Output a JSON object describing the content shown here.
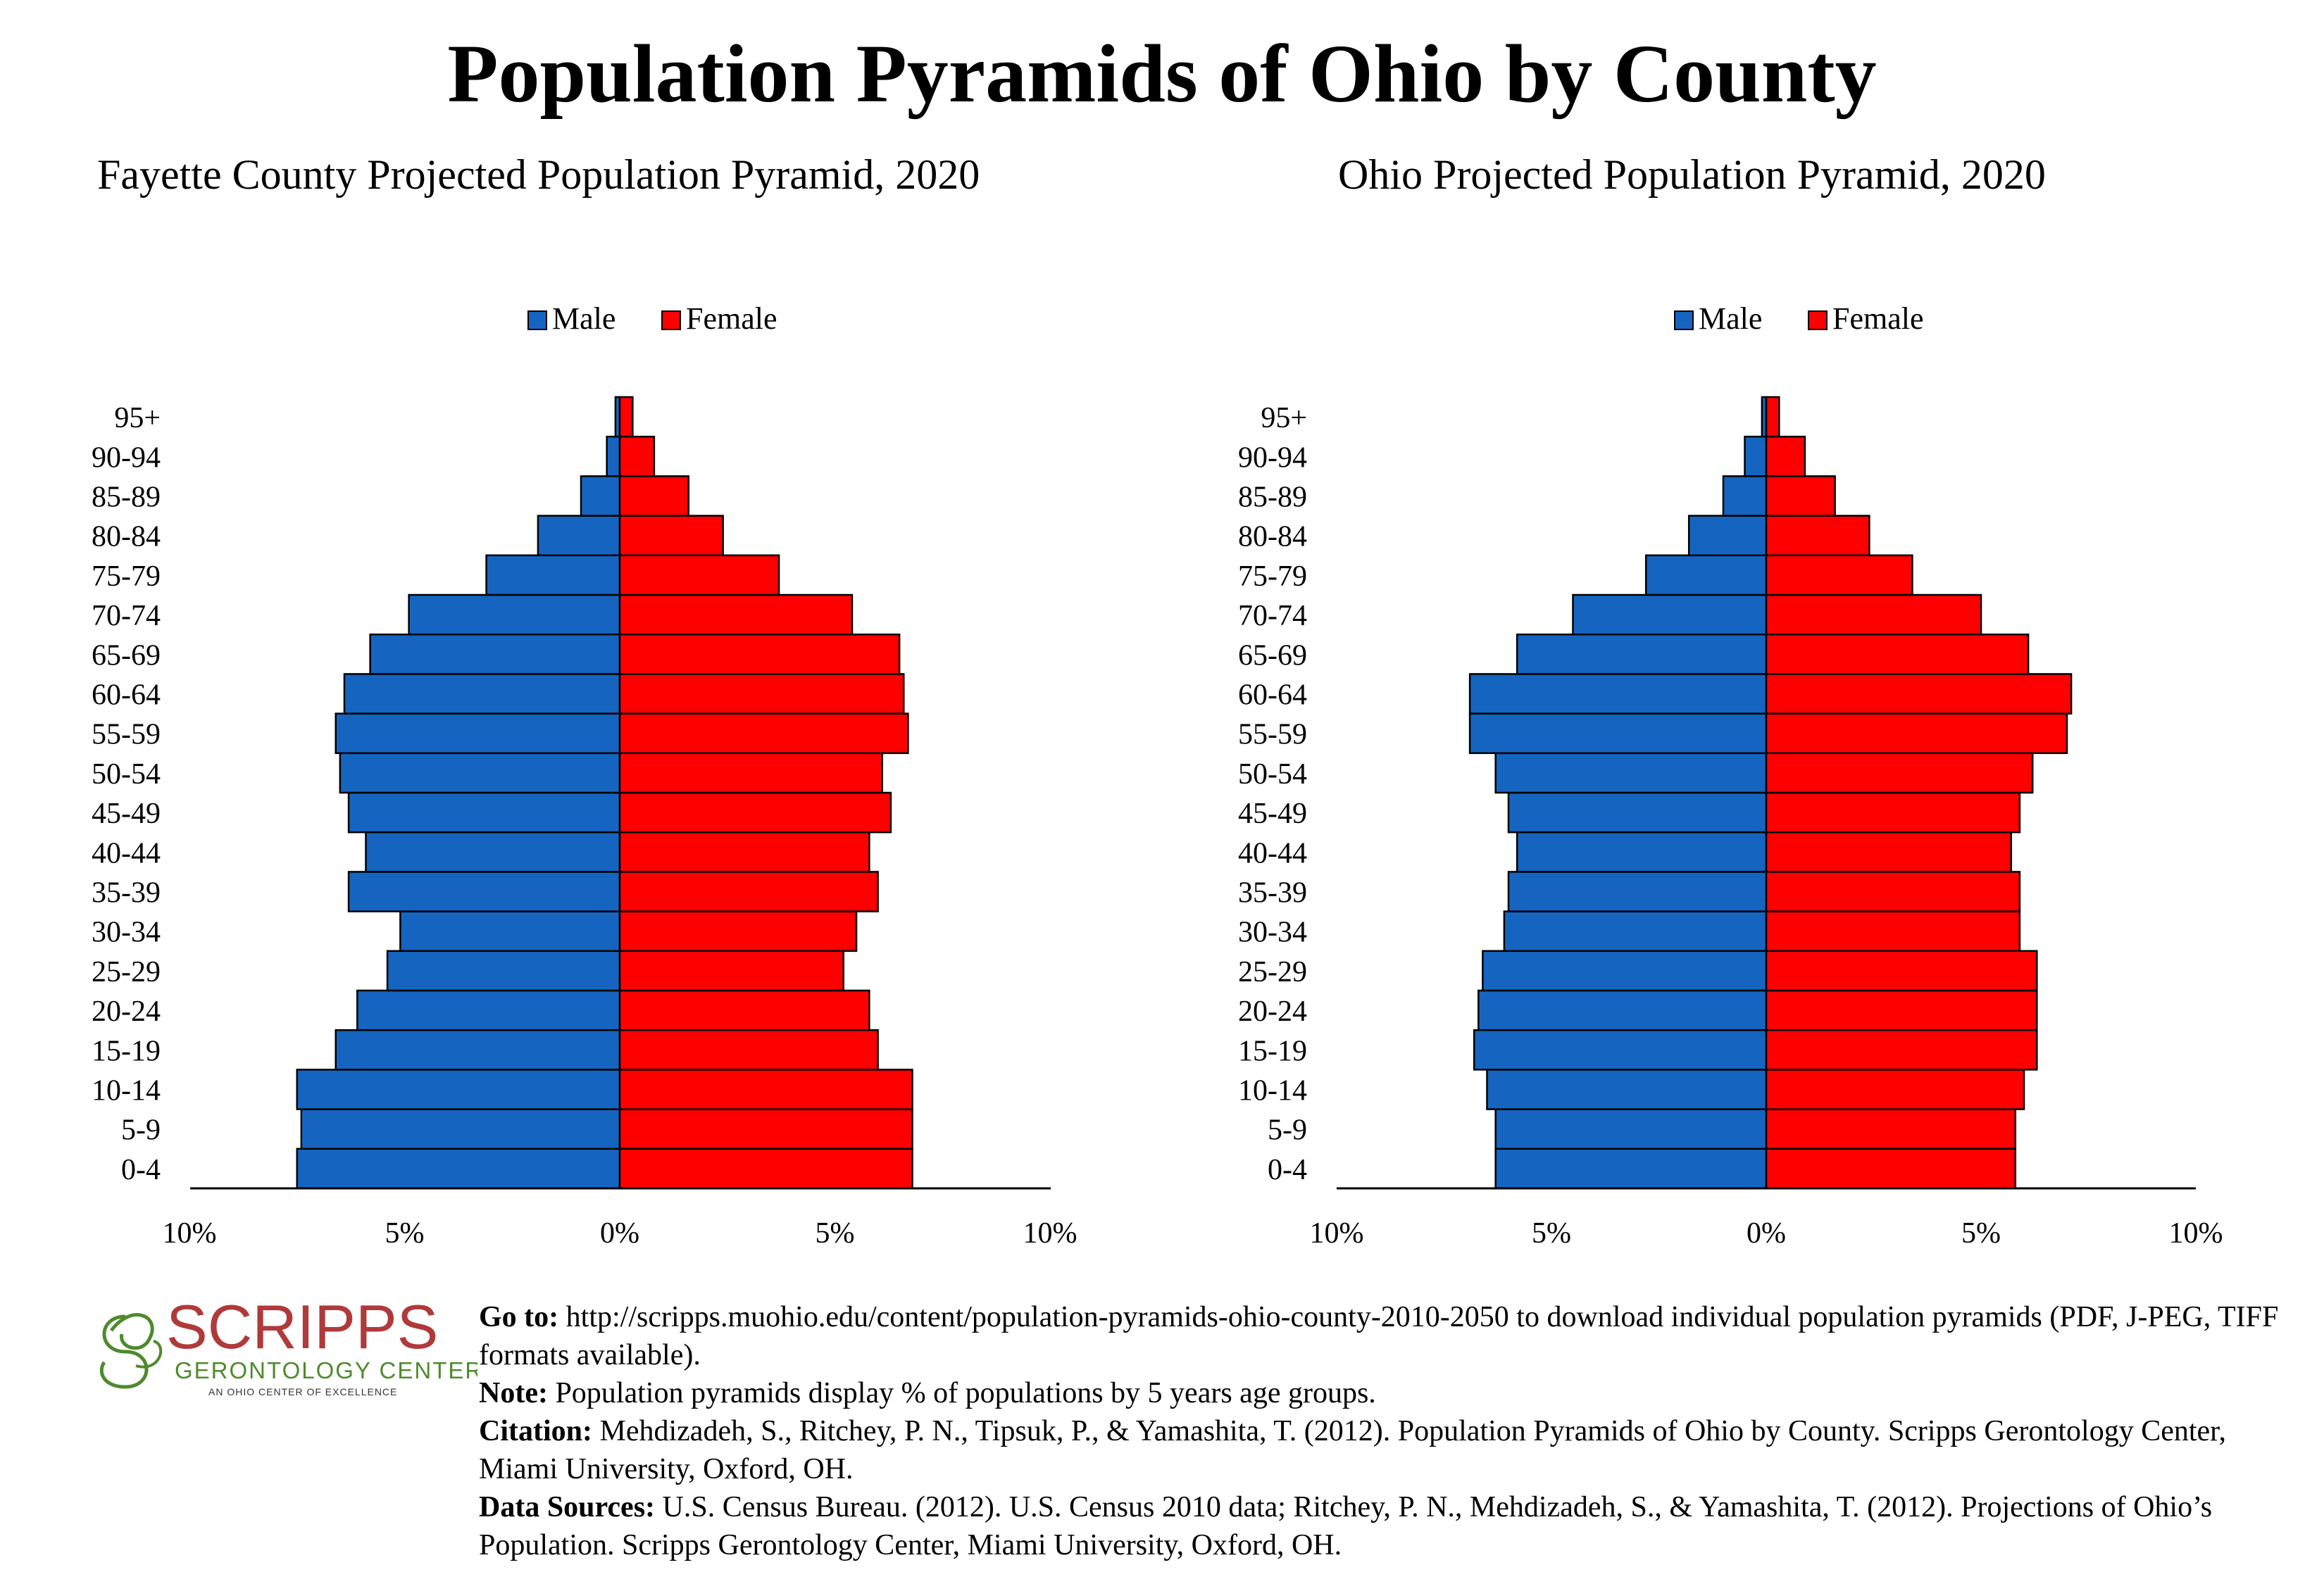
{
  "title": "Population Pyramids of Ohio by County",
  "colors": {
    "male": "#1565C0",
    "female": "#FF0000",
    "logo_red": "#B03A3A",
    "logo_green": "#4F8A2E"
  },
  "chart_data": [
    {
      "type": "bar",
      "title": "Fayette County Projected Population Pyramid, 2020",
      "legend": [
        "Male",
        "Female"
      ],
      "legend_position": "top",
      "categories": [
        "0-4",
        "5-9",
        "10-14",
        "15-19",
        "20-24",
        "25-29",
        "30-34",
        "35-39",
        "40-44",
        "45-49",
        "50-54",
        "55-59",
        "60-64",
        "65-69",
        "70-74",
        "75-79",
        "80-84",
        "85-89",
        "90-94",
        "95+"
      ],
      "series": [
        {
          "name": "Male",
          "values": [
            7.5,
            7.4,
            7.5,
            6.6,
            6.1,
            5.4,
            5.1,
            6.3,
            5.9,
            6.3,
            6.5,
            6.6,
            6.4,
            5.8,
            4.9,
            3.1,
            1.9,
            0.9,
            0.3,
            0.1
          ]
        },
        {
          "name": "Female",
          "values": [
            6.8,
            6.8,
            6.8,
            6.0,
            5.8,
            5.2,
            5.5,
            6.0,
            5.8,
            6.3,
            6.1,
            6.7,
            6.6,
            6.5,
            5.4,
            3.7,
            2.4,
            1.6,
            0.8,
            0.3
          ]
        }
      ],
      "xlim": [
        -10,
        10
      ],
      "x_ticks": [
        "10%",
        "5%",
        "0%",
        "5%",
        "10%"
      ]
    },
    {
      "type": "bar",
      "title": "Ohio Projected Population Pyramid, 2020",
      "legend": [
        "Male",
        "Female"
      ],
      "legend_position": "top",
      "categories": [
        "0-4",
        "5-9",
        "10-14",
        "15-19",
        "20-24",
        "25-29",
        "30-34",
        "35-39",
        "40-44",
        "45-49",
        "50-54",
        "55-59",
        "60-64",
        "65-69",
        "70-74",
        "75-79",
        "80-84",
        "85-89",
        "90-94",
        "95+"
      ],
      "series": [
        {
          "name": "Male",
          "values": [
            6.3,
            6.3,
            6.5,
            6.8,
            6.7,
            6.6,
            6.1,
            6.0,
            5.8,
            6.0,
            6.3,
            6.9,
            6.9,
            5.8,
            4.5,
            2.8,
            1.8,
            1.0,
            0.5,
            0.1
          ]
        },
        {
          "name": "Female",
          "values": [
            5.8,
            5.8,
            6.0,
            6.3,
            6.3,
            6.3,
            5.9,
            5.9,
            5.7,
            5.9,
            6.2,
            7.0,
            7.1,
            6.1,
            5.0,
            3.4,
            2.4,
            1.6,
            0.9,
            0.3
          ]
        }
      ],
      "xlim": [
        -10,
        10
      ],
      "x_ticks": [
        "10%",
        "5%",
        "0%",
        "5%",
        "10%"
      ]
    }
  ],
  "logo": {
    "name": "SCRIPPS",
    "line2": "GERONTOLOGY CENTER",
    "line3": "AN OHIO CENTER OF EXCELLENCE"
  },
  "notes": {
    "goto_label": "Go to:",
    "goto_text": " http://scripps.muohio.edu/content/population-pyramids-ohio-county-2010-2050 to download individual population pyramids (PDF, J-PEG, TIFF formats available).",
    "note_label": "Note:",
    "note_text": " Population pyramids display % of populations by 5 years age groups.",
    "citation_label": "Citation:",
    "citation_text": " Mehdizadeh, S., Ritchey, P. N., Tipsuk, P., & Yamashita, T. (2012). Population Pyramids of Ohio by County. Scripps Gerontology Center, Miami University, Oxford, OH.",
    "sources_label": "Data Sources:",
    "sources_text": " U.S. Census Bureau. (2012). U.S. Census 2010 data; Ritchey, P. N., Mehdizadeh, S., & Yamashita, T. (2012). Projections of Ohio’s Population. Scripps Gerontology Center, Miami University, Oxford, OH."
  }
}
